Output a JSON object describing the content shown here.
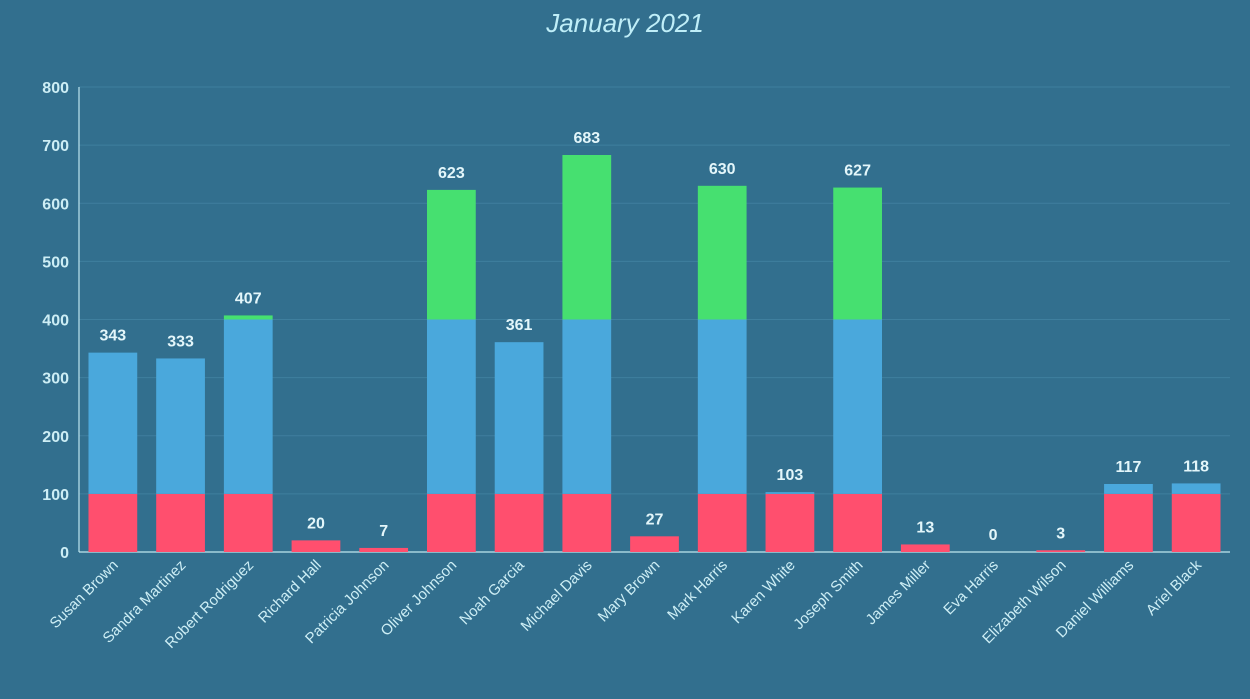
{
  "chart_data": {
    "type": "bar",
    "stacked": true,
    "title": "January 2021",
    "xlabel": "",
    "ylabel": "",
    "ylim": [
      0,
      800
    ],
    "yticks": [
      0,
      100,
      200,
      300,
      400,
      500,
      600,
      700,
      800
    ],
    "grid": true,
    "legend": "none",
    "categories": [
      "Susan Brown",
      "Sandra Martinez",
      "Robert Rodriguez",
      "Richard Hall",
      "Patricia Johnson",
      "Oliver Johnson",
      "Noah Garcia",
      "Michael Davis",
      "Mary Brown",
      "Mark Harris",
      "Karen White",
      "Joseph Smith",
      "James Miller",
      "Eva Harris",
      "Elizabeth Wilson",
      "Daniel Williams",
      "Ariel Black"
    ],
    "totals": [
      343,
      333,
      407,
      20,
      7,
      623,
      361,
      683,
      27,
      630,
      103,
      627,
      13,
      0,
      3,
      117,
      118
    ],
    "series": [
      {
        "color": "#ff4f6e",
        "values": [
          100,
          100,
          100,
          20,
          7,
          100,
          100,
          100,
          27,
          100,
          100,
          100,
          13,
          0,
          3,
          100,
          100
        ]
      },
      {
        "color": "#4aa8dc",
        "values": [
          243,
          233,
          300,
          0,
          0,
          300,
          261,
          300,
          0,
          300,
          3,
          300,
          0,
          0,
          0,
          17,
          18
        ]
      },
      {
        "color": "#46e070",
        "values": [
          0,
          0,
          7,
          0,
          0,
          223,
          0,
          283,
          0,
          230,
          0,
          227,
          0,
          0,
          0,
          0,
          0
        ]
      }
    ]
  },
  "colors": {
    "background": "#326f8e",
    "text": "#cdeef5",
    "grid": "#3f7f9e"
  }
}
